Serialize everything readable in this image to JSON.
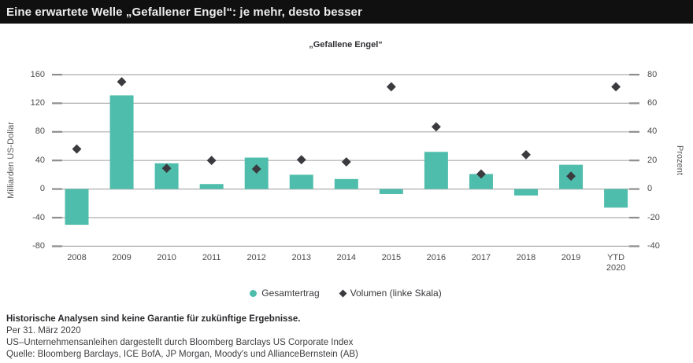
{
  "header": {
    "title": "Eine erwartete Welle „Gefallener Engel“: je mehr, desto besser"
  },
  "chart_data": {
    "type": "bar",
    "title": "„Gefallene Engel“",
    "categories": [
      "2008",
      "2009",
      "2010",
      "2011",
      "2012",
      "2013",
      "2014",
      "2015",
      "2016",
      "2017",
      "2018",
      "2019",
      "YTD 2020"
    ],
    "series": [
      {
        "name": "Gesamtertrag",
        "render": "bar",
        "axis": "right",
        "unit": "Prozent",
        "values": [
          -25,
          65.5,
          18,
          3.5,
          22,
          10,
          7,
          -3.5,
          26,
          10.5,
          -4.5,
          17,
          -13
        ]
      },
      {
        "name": "Volumen (linke Skala)",
        "render": "scatter-diamond",
        "axis": "left",
        "unit": "Milliarden US-Dollar",
        "values": [
          56,
          150,
          29,
          40,
          28,
          41,
          38,
          143,
          87,
          21,
          48,
          18,
          143
        ]
      }
    ],
    "left_axis": {
      "label": "Milliarden US-Dollar",
      "ticks": [
        160,
        120,
        80,
        40,
        0,
        -40,
        -80
      ],
      "range": [
        -80,
        160
      ]
    },
    "right_axis": {
      "label": "Prozent",
      "ticks": [
        80,
        60,
        40,
        20,
        0,
        -20,
        -40
      ],
      "range": [
        -40,
        80
      ]
    },
    "grid": true,
    "legend_position": "bottom"
  },
  "legend": {
    "items": [
      {
        "label": "Gesamtertrag",
        "marker": "circle"
      },
      {
        "label": "Volumen (linke Skala)",
        "marker": "diamond"
      }
    ]
  },
  "footer": {
    "line1": "Historische Analysen sind keine Garantie für zukünftige Ergebnisse.",
    "line2": "Per 31. März 2020",
    "line3": "US–Unternehmensanleihen dargestellt durch Bloomberg Barclays US Corporate Index",
    "line4": "Quelle: Bloomberg Barclays, ICE BofA, JP Morgan, Moody's und AllianceBernstein (AB)"
  },
  "colors": {
    "bar_teal": "#4FBDAC",
    "diamond_gray": "#3B3B3F",
    "gridline": "#ADADAD",
    "tick_stub": "#8E8E8E",
    "band_bg": "#101010",
    "band_text": "#EDEDED"
  }
}
